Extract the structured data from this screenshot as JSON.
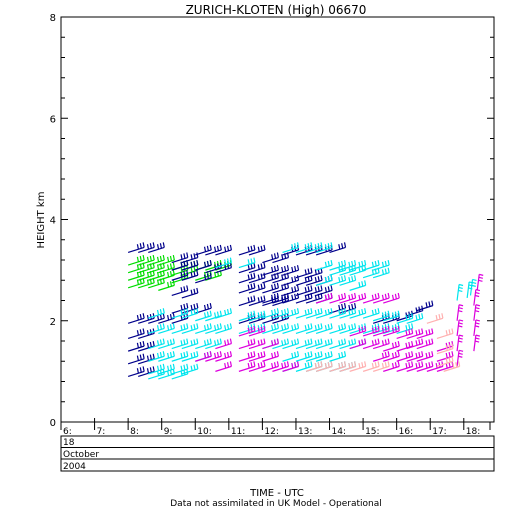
{
  "chart_data": {
    "type": "scatter",
    "title": "ZURICH-KLOTEN (High) 06670",
    "xlabel": "TIME - UTC",
    "ylabel": "HEIGHT km",
    "footnote": "Data not assimilated in UK Model - Operational",
    "date_rows": [
      "18",
      "October",
      "2004"
    ],
    "y_ticks": [
      "0",
      "2",
      "4",
      "6",
      "8"
    ],
    "x_ticks": [
      "6:",
      "7:",
      "8:",
      "9:",
      "10:",
      "11:",
      "12:",
      "13:",
      "14:",
      "15:",
      "16:",
      "17:",
      "18:"
    ],
    "xlim": [
      6,
      18.9
    ],
    "ylim": [
      0,
      8
    ],
    "grid": false,
    "colors": {
      "navy": "#00008b",
      "cyan": "#00e5ee",
      "green": "#00dd00",
      "magenta": "#dd00dd",
      "pink": "#ffb0b0"
    },
    "series": [
      {
        "color": "navy",
        "x": [
          8,
          8.3,
          8.6,
          9.3,
          9.6,
          10,
          10.3,
          10.6,
          11.3,
          11.6,
          12,
          12.3,
          12.6,
          13,
          13.3,
          13.6,
          14
        ],
        "y": [
          3.35,
          3.35,
          3.35,
          3.15,
          3.15,
          3.3,
          3.3,
          3.3,
          3.3,
          3.3,
          3.15,
          3.15,
          3.3,
          3.3,
          3.3,
          3.3,
          3.35
        ]
      },
      {
        "color": "green",
        "x": [
          8,
          8.3,
          8.6,
          8.9,
          9.3,
          9.6,
          10,
          10.3,
          10.6,
          8,
          8.3,
          8.6,
          8.9,
          9.3,
          9.6,
          10,
          10.3,
          8,
          8.3,
          8.6,
          8.9,
          9.3,
          8,
          8.3,
          8.6,
          8.9
        ],
        "y": [
          3.1,
          3.1,
          3.1,
          3.1,
          3.0,
          3.0,
          3.0,
          3.0,
          3.0,
          2.95,
          2.95,
          2.95,
          2.95,
          2.9,
          2.9,
          2.8,
          2.8,
          2.8,
          2.8,
          2.8,
          2.8,
          2.75,
          2.65,
          2.65,
          2.65,
          2.6
        ]
      },
      {
        "color": "navy",
        "x": [
          9.3,
          9.6,
          10,
          10.3,
          10.6,
          11.3,
          11.6,
          12,
          12.3,
          12.6,
          13,
          13.3,
          11.3,
          11.6,
          12,
          12.3,
          12.6,
          13,
          13.3,
          13.6,
          9.3,
          9.6,
          10,
          11.3,
          11.6,
          12,
          12.3,
          12.6,
          13,
          13.3,
          13.6,
          9.3,
          9.6,
          11.3,
          11.6,
          12,
          12.3
        ],
        "y": [
          3.0,
          3.0,
          3.0,
          2.95,
          2.95,
          2.95,
          2.95,
          2.9,
          2.9,
          2.9,
          2.85,
          2.85,
          2.75,
          2.75,
          2.75,
          2.75,
          2.7,
          2.7,
          2.7,
          2.7,
          2.8,
          2.8,
          2.75,
          2.55,
          2.55,
          2.55,
          2.55,
          2.5,
          2.5,
          2.5,
          2.5,
          2.5,
          2.45,
          2.3,
          2.3,
          2.3,
          2.3
        ]
      },
      {
        "color": "cyan",
        "x": [
          10.6,
          11.3,
          12.6,
          13,
          13.3,
          13.6,
          14,
          14.3,
          14.6,
          15,
          15.3,
          13.6,
          14,
          14.3,
          14.6,
          15,
          15.3,
          13.6,
          14,
          14.3,
          14.6
        ],
        "y": [
          3.05,
          3.05,
          3.35,
          3.35,
          3.35,
          3.35,
          3.0,
          3.0,
          3.0,
          3.0,
          3.0,
          3.0,
          2.9,
          2.9,
          2.9,
          2.85,
          2.85,
          2.7,
          2.7,
          2.7,
          2.6
        ]
      },
      {
        "color": "navy",
        "x": [
          9.3,
          9.6,
          10,
          8.9,
          9.3,
          12,
          12.3,
          12.6,
          13,
          13.3,
          13.6,
          14,
          14.3,
          11.3,
          11.6,
          12,
          12.3,
          8,
          8.3,
          8.6,
          8,
          8.3,
          8,
          8.3,
          8,
          8.3,
          8,
          8.3,
          15.3,
          15.6,
          16,
          16.3,
          16.6
        ],
        "y": [
          2.15,
          2.15,
          2.15,
          1.95,
          1.95,
          2.35,
          2.35,
          2.35,
          2.35,
          2.35,
          2.35,
          2.15,
          2.15,
          1.95,
          1.95,
          1.95,
          1.95,
          1.95,
          1.95,
          1.95,
          1.65,
          1.65,
          1.4,
          1.4,
          1.15,
          1.15,
          0.9,
          0.9,
          1.95,
          1.95,
          2.0,
          2.1,
          2.2
        ]
      },
      {
        "color": "cyan",
        "x": [
          8.6,
          9.3,
          9.6,
          10,
          10.3,
          10.6,
          11.3,
          11.6,
          12,
          12.3,
          12.6,
          13,
          13.3,
          13.6,
          14,
          14.3,
          14.6,
          15,
          15.3,
          15.6,
          16,
          16.3,
          8.6,
          8.9,
          9.3,
          9.6,
          10,
          10.3,
          10.6,
          11.3,
          11.6,
          12,
          12.3,
          12.6,
          13,
          13.3,
          13.6,
          14,
          14.3,
          14.6,
          15,
          15.3,
          15.6,
          16,
          8.6,
          8.9,
          9.3,
          9.6,
          10,
          10.3,
          12,
          12.3,
          12.6,
          13,
          13.3,
          13.6,
          14,
          14.3,
          14.6,
          8.6,
          8.9,
          9.3,
          9.6,
          10,
          12.6,
          13,
          13.3,
          13.6,
          14,
          8.6,
          8.9,
          9.3,
          9.6,
          12.6,
          13,
          13.3,
          13.6,
          14,
          14.3,
          8.6,
          8.9,
          9.3,
          17.8,
          18.1,
          18.2
        ],
        "y": [
          2.05,
          2.05,
          2.05,
          2.0,
          2.0,
          2.05,
          2.0,
          2.0,
          2.05,
          2.05,
          2.05,
          2.05,
          2.05,
          2.05,
          2.05,
          2.05,
          2.05,
          2.05,
          2.0,
          2.0,
          1.95,
          1.95,
          1.75,
          1.75,
          1.75,
          1.75,
          1.75,
          1.75,
          1.75,
          1.75,
          1.75,
          1.75,
          1.75,
          1.75,
          1.75,
          1.75,
          1.75,
          1.75,
          1.75,
          1.75,
          1.75,
          1.75,
          1.75,
          1.75,
          1.45,
          1.45,
          1.45,
          1.45,
          1.45,
          1.45,
          1.45,
          1.45,
          1.45,
          1.45,
          1.45,
          1.45,
          1.45,
          1.45,
          1.45,
          1.2,
          1.2,
          1.2,
          1.2,
          1.2,
          1.2,
          1.2,
          1.2,
          1.2,
          1.2,
          0.95,
          0.95,
          0.95,
          0.95,
          1.0,
          1.0,
          1.0,
          1.0,
          1.0,
          1.0,
          0.85,
          0.85,
          0.85,
          2.4,
          2.45,
          2.5
        ]
      },
      {
        "color": "magenta",
        "x": [
          13.6,
          14,
          14.3,
          14.6,
          15,
          15.3,
          15.6,
          11.3,
          11.6,
          14.6,
          15,
          15.3,
          15.6,
          16,
          16.3,
          16.6,
          10.6,
          11.3,
          11.6,
          12,
          14.6,
          15,
          15.3,
          15.6,
          16,
          16.3,
          16.6,
          10,
          10.3,
          10.6,
          11.3,
          11.6,
          12,
          15.3,
          15.6,
          16,
          16.3,
          16.6,
          10.6,
          11.3,
          11.6,
          12,
          12.3,
          12.6,
          15.6,
          16,
          16.3,
          16.6,
          16.9,
          17.2,
          17.2,
          17.2,
          17.8,
          17.8,
          17.8,
          17.8,
          18.3,
          18.3,
          18.3,
          18.3,
          18.4
        ],
        "y": [
          2.35,
          2.35,
          2.35,
          2.35,
          2.35,
          2.35,
          2.35,
          1.7,
          1.7,
          1.7,
          1.7,
          1.7,
          1.7,
          1.65,
          1.65,
          1.65,
          1.45,
          1.45,
          1.45,
          1.45,
          1.45,
          1.45,
          1.45,
          1.4,
          1.4,
          1.45,
          1.45,
          1.2,
          1.2,
          1.2,
          1.2,
          1.2,
          1.2,
          1.2,
          1.2,
          1.2,
          1.2,
          1.2,
          1.0,
          1.0,
          1.0,
          1.0,
          1.0,
          1.0,
          1.0,
          1.0,
          1.0,
          1.0,
          1.0,
          1.4,
          1.2,
          1.0,
          2.0,
          1.7,
          1.4,
          1.1,
          2.3,
          2.0,
          1.7,
          1.4,
          2.6
        ]
      },
      {
        "color": "pink",
        "x": [
          13.3,
          13.6,
          14,
          14.3,
          14.6,
          15,
          15.3,
          16.9,
          17.2,
          17.2,
          17.2,
          17.4
        ],
        "y": [
          1.0,
          1.0,
          1.0,
          1.0,
          1.0,
          1.0,
          1.0,
          1.95,
          1.65,
          1.35,
          1.1,
          1.0
        ]
      }
    ]
  }
}
